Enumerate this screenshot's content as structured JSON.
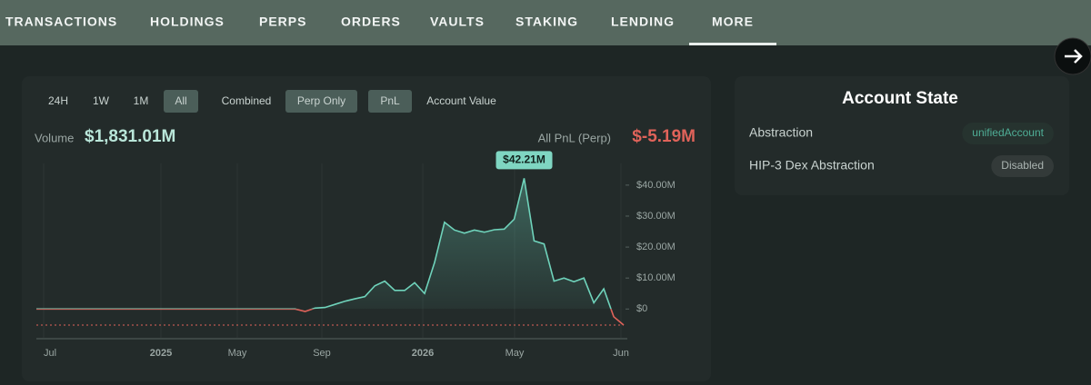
{
  "nav": {
    "tabs": [
      "TRANSACTIONS",
      "HOLDINGS",
      "PERPS",
      "ORDERS",
      "VAULTS",
      "STAKING",
      "LENDING",
      "MORE"
    ],
    "active": 7
  },
  "filters": {
    "range": [
      "24H",
      "1W",
      "1M",
      "All"
    ],
    "range_active": 3,
    "mode": [
      "Combined",
      "Perp Only"
    ],
    "mode_active": 1,
    "metric": [
      "PnL",
      "Account Value"
    ],
    "metric_active": 0
  },
  "stats": {
    "volume_label": "Volume",
    "volume": "$1,831.01M",
    "pnl_label": "All PnL (Perp)",
    "pnl": "$-5.19M"
  },
  "chart_data": {
    "type": "line",
    "color": "#6fd3bb",
    "negative_color": "#e0635a",
    "x_labels": [
      "Jul",
      "2025",
      "May",
      "Sep",
      "2026",
      "May",
      "Jun"
    ],
    "values": [
      0,
      0,
      0,
      0,
      0,
      0,
      0,
      0,
      0,
      0,
      0,
      0,
      0,
      0,
      0,
      0,
      0,
      0,
      0,
      0,
      0,
      0,
      0,
      0,
      0,
      0,
      0,
      -0.8,
      0.3,
      0.5,
      1.5,
      2.5,
      3.3,
      4,
      7.5,
      9,
      6,
      6,
      8.5,
      5,
      15,
      28,
      25.5,
      24.5,
      25.5,
      24.8,
      25.6,
      25.8,
      29,
      42.21,
      22,
      21,
      9,
      10,
      8.8,
      10,
      2,
      6.5,
      -2.5,
      -5.19
    ],
    "peak_label": "$42.21M",
    "ylim": [
      -9,
      47
    ],
    "yticks": [
      {
        "value": 0,
        "label": "$0"
      },
      {
        "value": 10,
        "label": "$10.00M"
      },
      {
        "value": 20,
        "label": "$20.00M"
      },
      {
        "value": 30,
        "label": "$30.00M"
      },
      {
        "value": 40,
        "label": "$40.00M"
      }
    ]
  },
  "account_state": {
    "title": "Account State",
    "rows": [
      {
        "label": "Abstraction",
        "value": "unifiedAccount"
      },
      {
        "label": "HIP-3 Dex Abstraction",
        "value": "Disabled"
      }
    ]
  }
}
